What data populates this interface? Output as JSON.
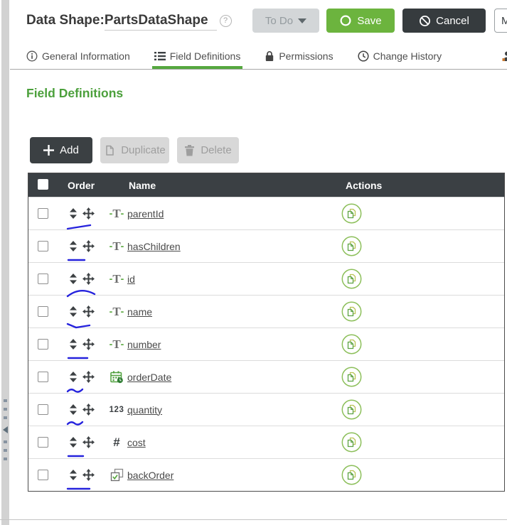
{
  "header": {
    "type_label": "Data Shape:",
    "entity_name": "PartsDataShape",
    "help_glyph": "?",
    "todo_label": "To Do",
    "save_label": "Save",
    "cancel_label": "Cancel",
    "more_label": "M"
  },
  "tabs": [
    {
      "label": "General Information",
      "icon": "info-icon",
      "active": false
    },
    {
      "label": "Field Definitions",
      "icon": "list-icon",
      "active": true
    },
    {
      "label": "Permissions",
      "icon": "lock-icon",
      "active": false
    },
    {
      "label": "Change History",
      "icon": "clock-icon",
      "active": false
    },
    {
      "label": "",
      "icon": "entity-icon",
      "active": false
    }
  ],
  "section_title": "Field Definitions",
  "toolbar": {
    "add_label": "Add",
    "duplicate_label": "Duplicate",
    "delete_label": "Delete"
  },
  "table": {
    "columns": {
      "order": "Order",
      "name": "Name",
      "actions": "Actions"
    },
    "rows": [
      {
        "name": "parentId",
        "type": "string",
        "annotation": "slant"
      },
      {
        "name": "hasChildren",
        "type": "string",
        "annotation": "line"
      },
      {
        "name": "id",
        "type": "string",
        "annotation": "arc"
      },
      {
        "name": "name",
        "type": "string",
        "annotation": "bend"
      },
      {
        "name": "number",
        "type": "string",
        "annotation": "line2"
      },
      {
        "name": "orderDate",
        "type": "datetime",
        "annotation": "tilde"
      },
      {
        "name": "quantity",
        "type": "integer",
        "annotation": "tilde2"
      },
      {
        "name": "cost",
        "type": "number",
        "annotation": "line3"
      },
      {
        "name": "backOrder",
        "type": "boolean",
        "annotation": "line4"
      }
    ]
  },
  "colors": {
    "accent_green": "#6cb43e",
    "text_green": "#4ca03c",
    "dark": "#3b4044",
    "ink_blue": "#2522dd"
  }
}
